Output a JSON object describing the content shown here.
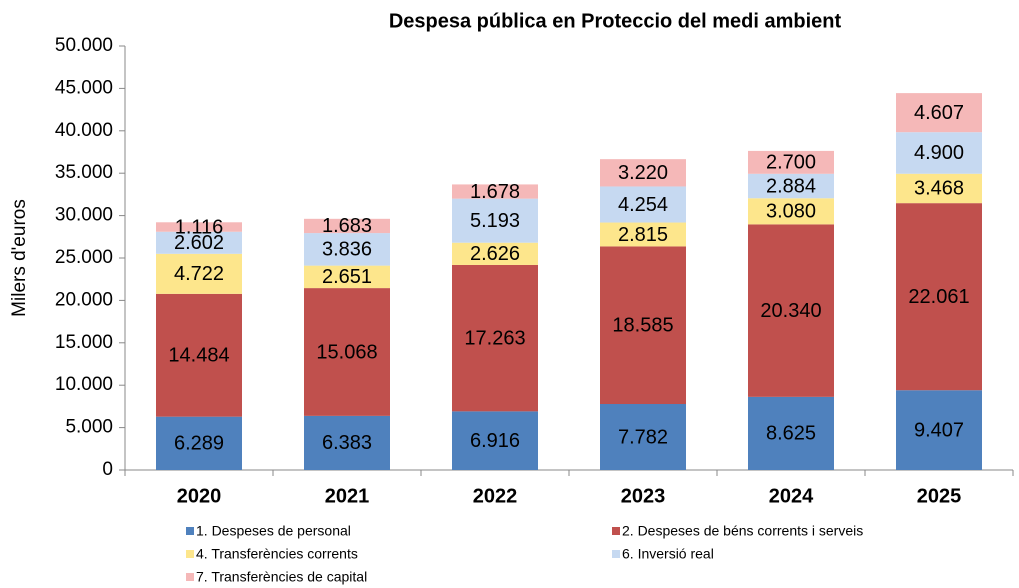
{
  "chart_data": {
    "type": "stacked_bar",
    "title": "Despesa pública en Proteccio del medi ambient",
    "y_label": "Milers d'euros",
    "categories": [
      "2020",
      "2021",
      "2022",
      "2023",
      "2024",
      "2025"
    ],
    "series": [
      {
        "name": "1. Despeses de personal",
        "color": "#4f81bd",
        "values": [
          6289,
          6383,
          6916,
          7782,
          8625,
          9407
        ],
        "value_labels": [
          "6.289",
          "6.383",
          "6.916",
          "7.782",
          "8.625",
          "9.407"
        ]
      },
      {
        "name": "2. Despeses de béns corrents i serveis",
        "color": "#c0504d",
        "values": [
          14484,
          15068,
          17263,
          18585,
          20340,
          22061
        ],
        "value_labels": [
          "14.484",
          "15.068",
          "17.263",
          "18.585",
          "20.340",
          "22.061"
        ]
      },
      {
        "name": "4. Transferències corrents",
        "color": "#fde68c",
        "values": [
          4722,
          2651,
          2626,
          2815,
          3080,
          3468
        ],
        "value_labels": [
          "4.722",
          "2.651",
          "2.626",
          "2.815",
          "3.080",
          "3.468"
        ]
      },
      {
        "name": "6. Inversió real",
        "color": "#c6d9f1",
        "values": [
          2602,
          3836,
          5193,
          4254,
          2884,
          4900
        ],
        "value_labels": [
          "2.602",
          "3.836",
          "5.193",
          "4.254",
          "2.884",
          "4.900"
        ]
      },
      {
        "name": "7. Transferències de capital",
        "color": "#f5b8b8",
        "values": [
          1116,
          1683,
          1678,
          3220,
          2700,
          4607
        ],
        "value_labels": [
          "1.116",
          "1.683",
          "1.678",
          "3.220",
          "2.700",
          "4.607"
        ]
      }
    ],
    "ylim": [
      0,
      50000
    ],
    "yticks": [
      0,
      {
        "value": 5000,
        "label": "5.000"
      },
      {
        "value": 10000,
        "label": "10.000"
      },
      {
        "value": 15000,
        "label": "15.000"
      },
      {
        "value": 20000,
        "label": "20.000"
      },
      {
        "value": 25000,
        "label": "25.000"
      },
      {
        "value": 30000,
        "label": "30.000"
      },
      {
        "value": 35000,
        "label": "35.000"
      },
      {
        "value": 40000,
        "label": "40.000"
      },
      {
        "value": 45000,
        "label": "45.000"
      },
      {
        "value": 50000,
        "label": "50.000"
      }
    ],
    "grid": false
  }
}
